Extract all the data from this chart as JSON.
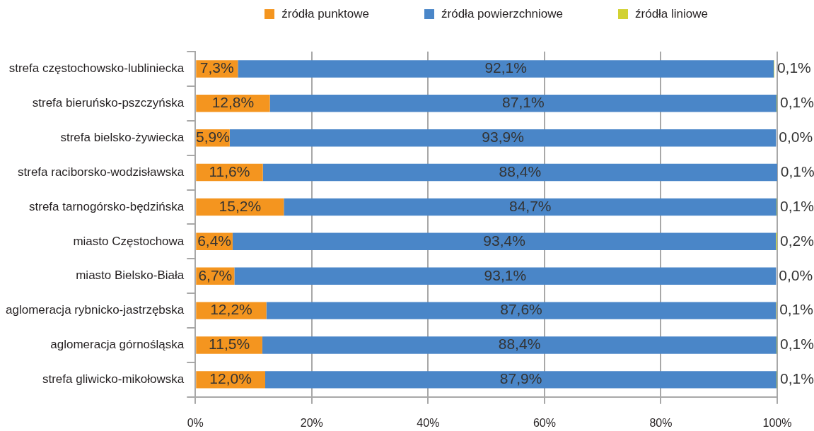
{
  "chart_data": {
    "type": "bar",
    "orientation": "horizontal",
    "stacked": true,
    "legend": "top",
    "grid": "x",
    "categories": [
      "strefa częstochowsko-lubliniecka",
      "strefa bieruńsko-pszczyńska",
      "strefa bielsko-żywiecka",
      "strefa raciborsko-wodzisławska",
      "strefa tarnogórsko-będzińska",
      "miasto Częstochowa",
      "miasto Bielsko-Biała",
      "aglomeracja rybnicko-jastrzębska",
      "aglomeracja górnośląska",
      "strefa gliwicko-mikołowska"
    ],
    "series": [
      {
        "name": "źródła punktowe",
        "color": "#f4951f",
        "values": [
          7.3,
          12.8,
          5.9,
          11.6,
          15.2,
          6.4,
          6.7,
          12.2,
          11.5,
          12.0
        ],
        "value_labels": [
          "7,3%",
          "12,8%",
          "5,9%",
          "11,6%",
          "15,2%",
          "6,4%",
          "6,7%",
          "12,2%",
          "11,5%",
          "12,0%"
        ]
      },
      {
        "name": "źródła powierzchniowe",
        "color": "#4a86c8",
        "values": [
          92.1,
          87.1,
          93.9,
          88.4,
          84.7,
          93.4,
          93.1,
          87.6,
          88.4,
          87.9
        ],
        "value_labels": [
          "92,1%",
          "87,1%",
          "93,9%",
          "88,4%",
          "84,7%",
          "93,4%",
          "93,1%",
          "87,6%",
          "88,4%",
          "87,9%"
        ]
      },
      {
        "name": "źródła liniowe",
        "color": "#d2d232",
        "values": [
          0.1,
          0.1,
          0.0,
          0.1,
          0.1,
          0.2,
          0.0,
          0.1,
          0.1,
          0.1
        ],
        "value_labels": [
          "0,1%",
          "0,1%",
          "0,0%",
          "0,1%",
          "0,1%",
          "0,2%",
          "0,0%",
          "0,1%",
          "0,1%",
          "0,1%"
        ]
      }
    ],
    "xlim": [
      0,
      100
    ],
    "xticks": [
      {
        "value": 0,
        "label": "0%"
      },
      {
        "value": 20,
        "label": "20%"
      },
      {
        "value": 40,
        "label": "40%"
      },
      {
        "value": 60,
        "label": "60%"
      },
      {
        "value": 80,
        "label": "80%"
      },
      {
        "value": 100,
        "label": "100%"
      }
    ]
  }
}
